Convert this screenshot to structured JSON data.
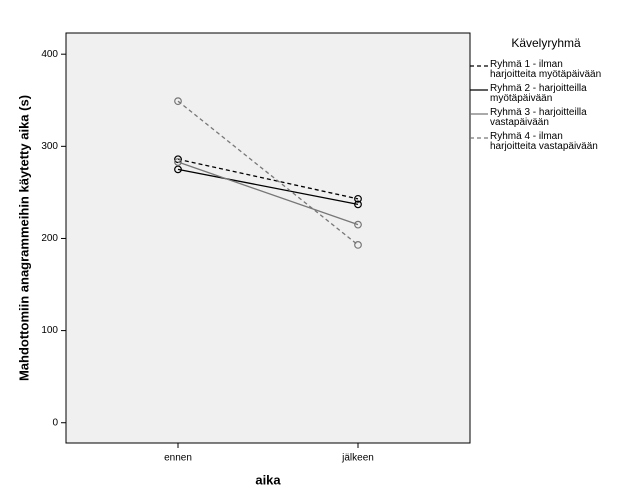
{
  "chart_data": {
    "type": "line",
    "categories": [
      "ennen",
      "jälkeen"
    ],
    "x_label": "aika",
    "y_label": "Mahdottomiin anagrammeihin käytetty aika (s)",
    "legend_title": "Kävelyryhmä",
    "ylim": [
      -22,
      423
    ],
    "yticks": [
      0,
      100,
      200,
      300,
      400
    ],
    "series": [
      {
        "name": "Ryhmä 1 - ilman harjoitteita myötäpäivään",
        "color": "#000000",
        "dash": true,
        "values": [
          286,
          243
        ]
      },
      {
        "name": "Ryhmä 2 - harjoitteilla myötäpäivään",
        "color": "#000000",
        "dash": false,
        "values": [
          275,
          237
        ]
      },
      {
        "name": "Ryhmä 3 - harjoitteilla vastapäivään",
        "color": "#777777",
        "dash": false,
        "values": [
          283,
          215
        ]
      },
      {
        "name": "Ryhmä 4 - ilman harjoitteita vastapäivään",
        "color": "#777777",
        "dash": true,
        "values": [
          349,
          193
        ]
      }
    ]
  }
}
